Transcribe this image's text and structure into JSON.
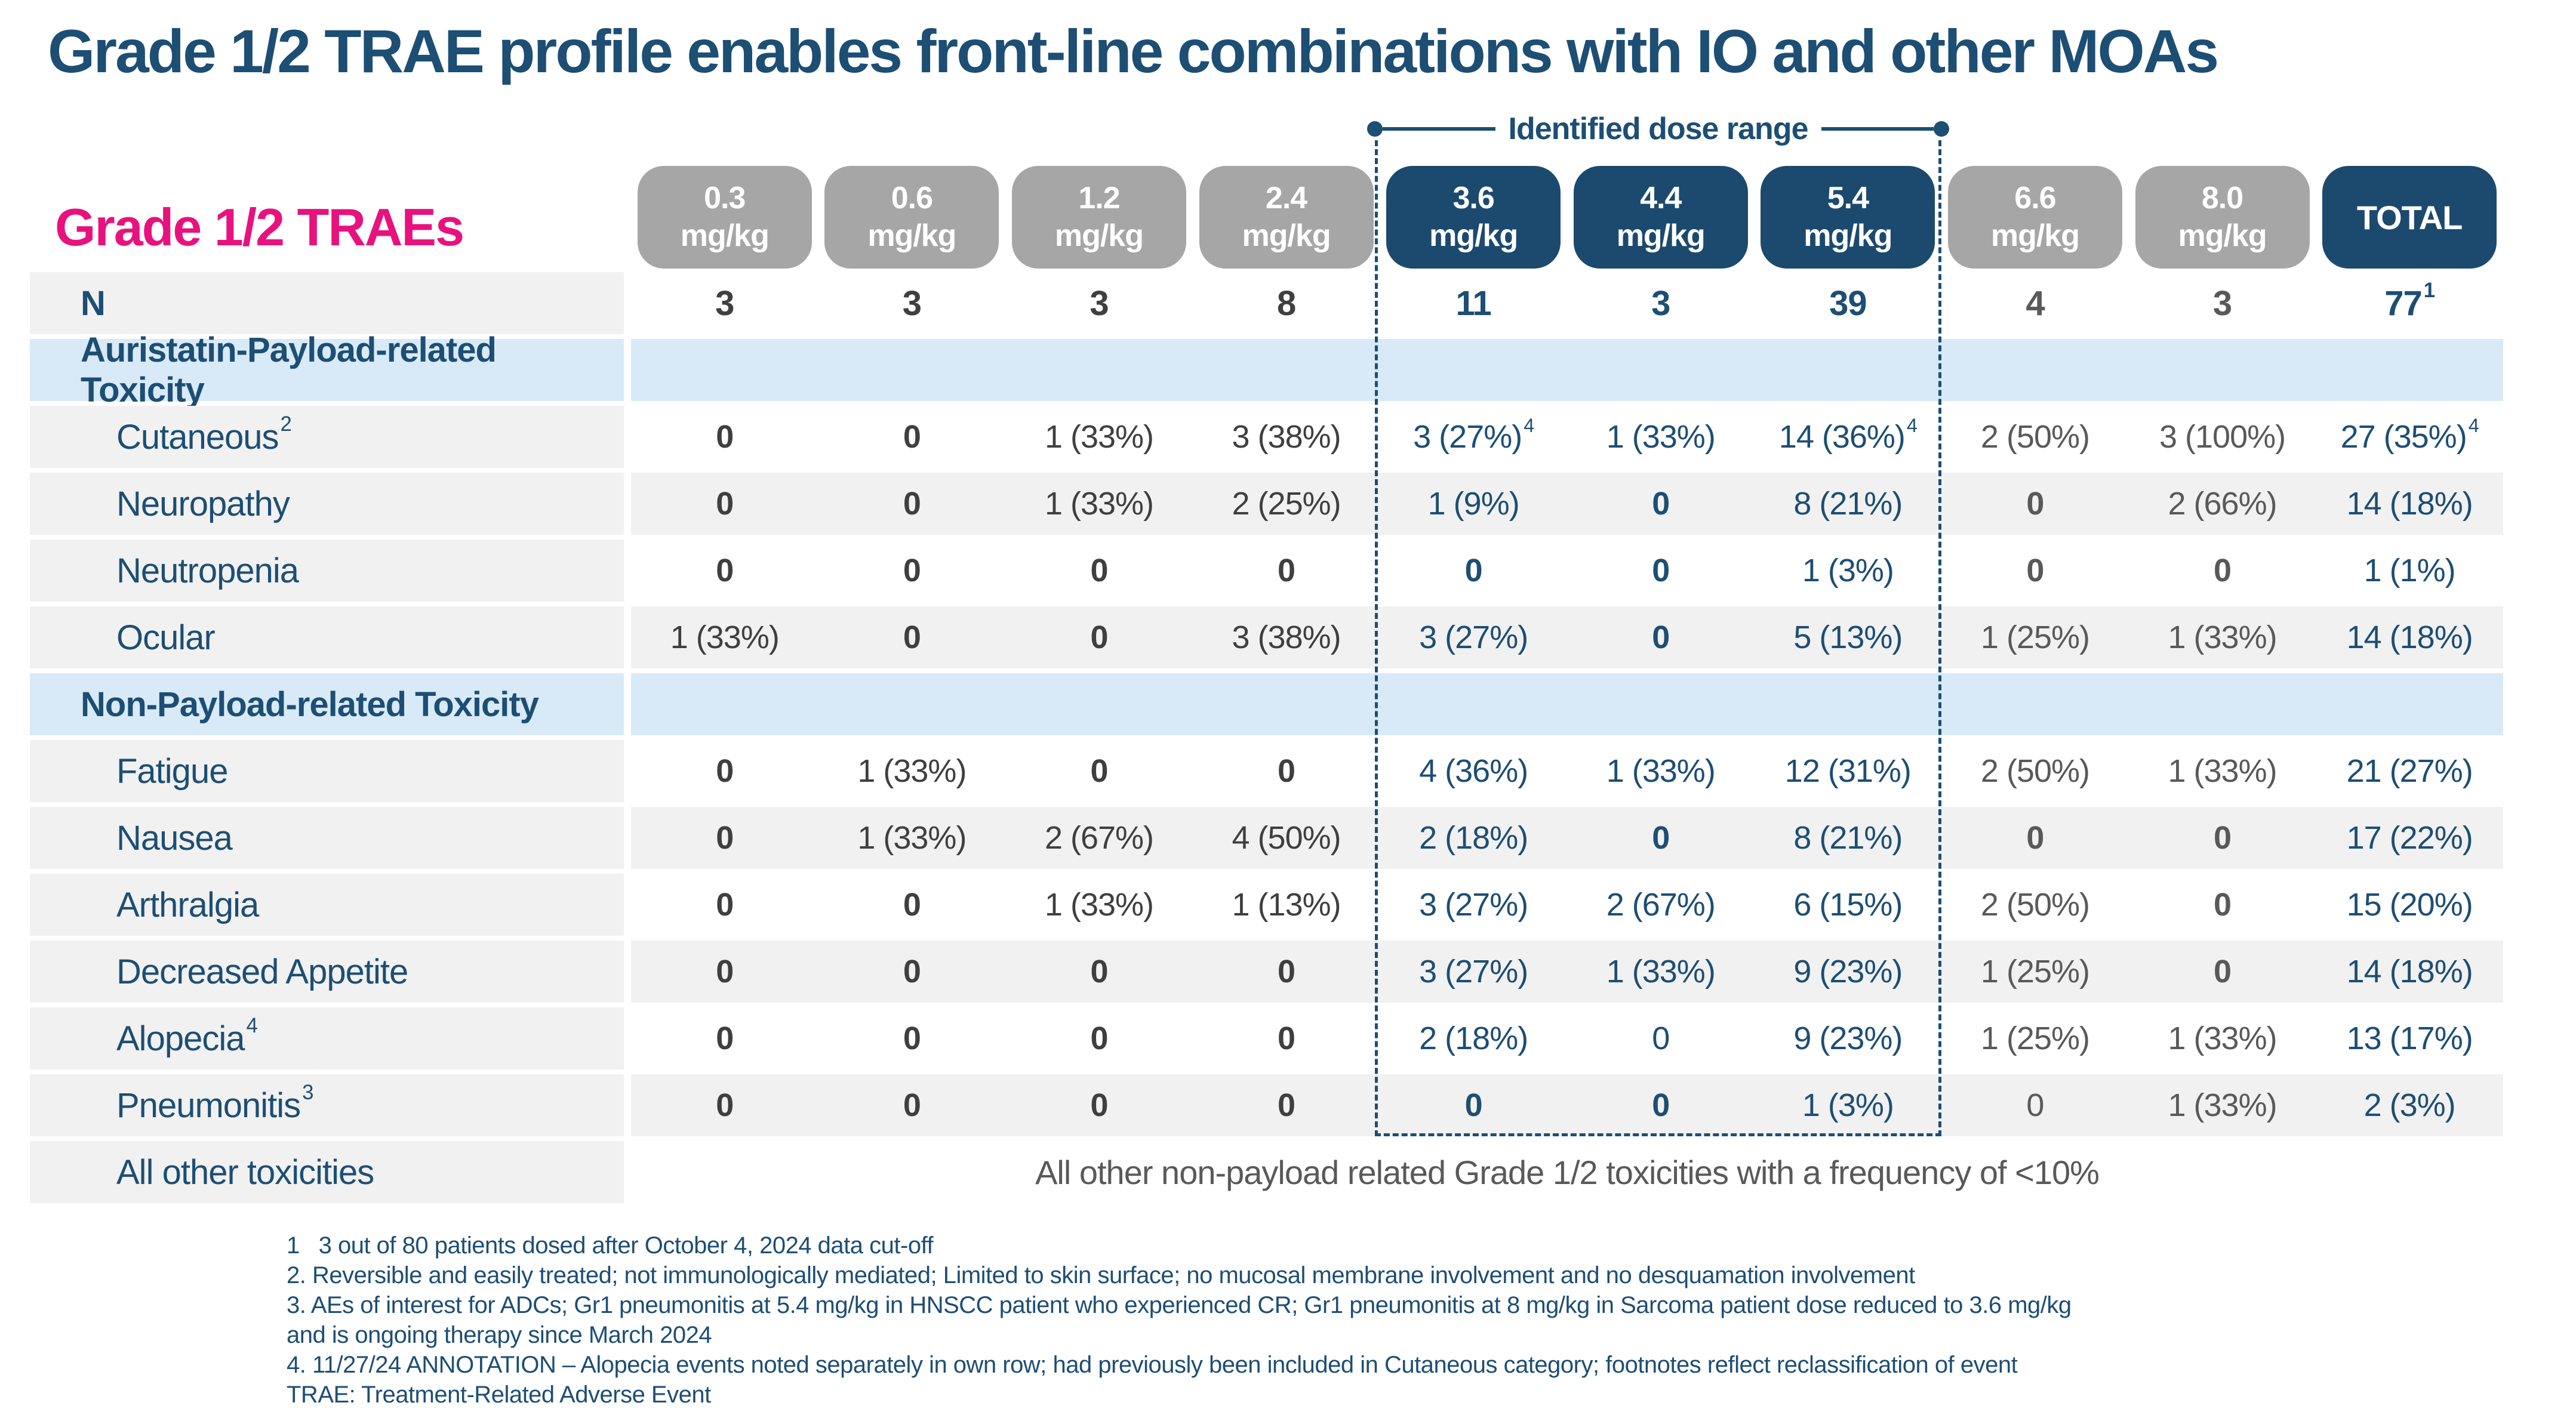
{
  "slide": {
    "title": "Grade 1/2 TRAE profile enables front-line combinations with IO and other MOAs"
  },
  "colors": {
    "navy": "#1d4e74",
    "navy_box": "#1c4a6e",
    "pink": "#e8127e",
    "gray_box": "#a6a6a6",
    "light_blue": "#d8eaf7",
    "cell_gray": "#f1f1f1",
    "text_dark": "#3f3f3f",
    "text_mid": "#595959"
  },
  "table": {
    "heading": "Grade 1/2 TRAEs",
    "annotation_label": "Identified dose range",
    "columns": [
      {
        "dose": "0.3",
        "unit": "mg/kg",
        "highlight": false
      },
      {
        "dose": "0.6",
        "unit": "mg/kg",
        "highlight": false
      },
      {
        "dose": "1.2",
        "unit": "mg/kg",
        "highlight": false
      },
      {
        "dose": "2.4",
        "unit": "mg/kg",
        "highlight": false
      },
      {
        "dose": "3.6",
        "unit": "mg/kg",
        "highlight": true
      },
      {
        "dose": "4.4",
        "unit": "mg/kg",
        "highlight": true
      },
      {
        "dose": "5.4",
        "unit": "mg/kg",
        "highlight": true
      },
      {
        "dose": "6.6",
        "unit": "mg/kg",
        "highlight": false
      },
      {
        "dose": "8.0",
        "unit": "mg/kg",
        "highlight": false
      },
      {
        "dose": "TOTAL",
        "unit": "",
        "highlight": true
      }
    ],
    "rows": [
      {
        "type": "n",
        "label": "N",
        "cells": [
          {
            "t": "3",
            "b": true
          },
          {
            "t": "3",
            "b": true
          },
          {
            "t": "3",
            "b": true
          },
          {
            "t": "8",
            "b": true
          },
          {
            "t": "11",
            "b": true
          },
          {
            "t": "3",
            "b": true
          },
          {
            "t": "39",
            "b": true
          },
          {
            "t": "4",
            "b": true
          },
          {
            "t": "3",
            "b": true
          },
          {
            "t": "77",
            "sup": "1",
            "b": true
          }
        ]
      },
      {
        "type": "section",
        "label": "Auristatin-Payload-related Toxicity"
      },
      {
        "type": "data",
        "label": "Cutaneous",
        "sup": "2",
        "shaded": false,
        "cells": [
          {
            "t": "0",
            "b": true
          },
          {
            "t": "0",
            "b": true
          },
          {
            "t": "1 (33%)"
          },
          {
            "t": "3 (38%)"
          },
          {
            "t": "3 (27%)",
            "sup": "4"
          },
          {
            "t": "1 (33%)"
          },
          {
            "t": "14 (36%)",
            "sup": "4"
          },
          {
            "t": "2 (50%)"
          },
          {
            "t": "3 (100%)"
          },
          {
            "t": "27 (35%)",
            "sup": "4"
          }
        ]
      },
      {
        "type": "data",
        "label": "Neuropathy",
        "shaded": true,
        "cells": [
          {
            "t": "0",
            "b": true
          },
          {
            "t": "0",
            "b": true
          },
          {
            "t": "1 (33%)"
          },
          {
            "t": "2 (25%)"
          },
          {
            "t": "1 (9%)"
          },
          {
            "t": "0",
            "b": true
          },
          {
            "t": "8 (21%)"
          },
          {
            "t": "0",
            "b": true
          },
          {
            "t": "2 (66%)"
          },
          {
            "t": "14 (18%)"
          }
        ]
      },
      {
        "type": "data",
        "label": "Neutropenia",
        "shaded": false,
        "cells": [
          {
            "t": "0",
            "b": true
          },
          {
            "t": "0",
            "b": true
          },
          {
            "t": "0",
            "b": true
          },
          {
            "t": "0",
            "b": true
          },
          {
            "t": "0",
            "b": true
          },
          {
            "t": "0",
            "b": true
          },
          {
            "t": "1 (3%)"
          },
          {
            "t": "0",
            "b": true
          },
          {
            "t": "0",
            "b": true
          },
          {
            "t": "1 (1%)"
          }
        ]
      },
      {
        "type": "data",
        "label": "Ocular",
        "shaded": true,
        "cells": [
          {
            "t": "1 (33%)"
          },
          {
            "t": "0",
            "b": true
          },
          {
            "t": "0",
            "b": true
          },
          {
            "t": "3 (38%)"
          },
          {
            "t": "3 (27%)"
          },
          {
            "t": "0",
            "b": true
          },
          {
            "t": "5 (13%)"
          },
          {
            "t": "1 (25%)"
          },
          {
            "t": "1 (33%)"
          },
          {
            "t": "14 (18%)"
          }
        ]
      },
      {
        "type": "section",
        "label": "Non-Payload-related Toxicity"
      },
      {
        "type": "data",
        "label": "Fatigue",
        "shaded": false,
        "cells": [
          {
            "t": "0",
            "b": true
          },
          {
            "t": "1 (33%)"
          },
          {
            "t": "0",
            "b": true
          },
          {
            "t": "0",
            "b": true
          },
          {
            "t": "4 (36%)"
          },
          {
            "t": "1 (33%)"
          },
          {
            "t": "12 (31%)"
          },
          {
            "t": "2 (50%)"
          },
          {
            "t": "1 (33%)"
          },
          {
            "t": "21 (27%)"
          }
        ]
      },
      {
        "type": "data",
        "label": "Nausea",
        "shaded": true,
        "cells": [
          {
            "t": "0",
            "b": true
          },
          {
            "t": "1 (33%)"
          },
          {
            "t": "2 (67%)"
          },
          {
            "t": "4 (50%)"
          },
          {
            "t": "2 (18%)"
          },
          {
            "t": "0",
            "b": true
          },
          {
            "t": "8 (21%)"
          },
          {
            "t": "0",
            "b": true
          },
          {
            "t": "0",
            "b": true
          },
          {
            "t": "17 (22%)"
          }
        ]
      },
      {
        "type": "data",
        "label": "Arthralgia",
        "shaded": false,
        "cells": [
          {
            "t": "0",
            "b": true
          },
          {
            "t": "0",
            "b": true
          },
          {
            "t": "1 (33%)"
          },
          {
            "t": "1 (13%)"
          },
          {
            "t": "3 (27%)"
          },
          {
            "t": "2 (67%)"
          },
          {
            "t": "6 (15%)"
          },
          {
            "t": "2 (50%)"
          },
          {
            "t": "0",
            "b": true
          },
          {
            "t": "15 (20%)"
          }
        ]
      },
      {
        "type": "data",
        "label": "Decreased Appetite",
        "shaded": true,
        "cells": [
          {
            "t": "0",
            "b": true
          },
          {
            "t": "0",
            "b": true
          },
          {
            "t": "0",
            "b": true
          },
          {
            "t": "0",
            "b": true
          },
          {
            "t": "3 (27%)"
          },
          {
            "t": "1 (33%)"
          },
          {
            "t": "9 (23%)"
          },
          {
            "t": "1 (25%)"
          },
          {
            "t": "0",
            "b": true
          },
          {
            "t": "14 (18%)"
          }
        ]
      },
      {
        "type": "data",
        "label": "Alopecia",
        "sup": "4",
        "shaded": false,
        "cells": [
          {
            "t": "0",
            "b": true
          },
          {
            "t": "0",
            "b": true
          },
          {
            "t": "0",
            "b": true
          },
          {
            "t": "0",
            "b": true
          },
          {
            "t": "2 (18%)"
          },
          {
            "t": "0",
            "b": false
          },
          {
            "t": "9 (23%)"
          },
          {
            "t": "1 (25%)"
          },
          {
            "t": "1 (33%)"
          },
          {
            "t": "13 (17%)"
          }
        ]
      },
      {
        "type": "data",
        "label": "Pneumonitis",
        "sup": "3",
        "shaded": true,
        "cells": [
          {
            "t": "0",
            "b": true
          },
          {
            "t": "0",
            "b": true
          },
          {
            "t": "0",
            "b": true
          },
          {
            "t": "0",
            "b": true
          },
          {
            "t": "0",
            "b": true
          },
          {
            "t": "0",
            "b": true
          },
          {
            "t": "1 (3%)"
          },
          {
            "t": "0",
            "b": false
          },
          {
            "t": "1 (33%)"
          },
          {
            "t": "2 (3%)"
          }
        ]
      },
      {
        "type": "merged",
        "label": "All other toxicities",
        "text": "All other non-payload related Grade 1/2 toxicities with a frequency of <10%"
      }
    ]
  },
  "footnotes": [
    "1   3 out of 80 patients dosed after October 4, 2024 data cut-off",
    "2. Reversible and easily treated; not immunologically mediated; Limited to skin surface; no mucosal membrane involvement and no desquamation involvement",
    "3. AEs of interest for ADCs; Gr1 pneumonitis at 5.4 mg/kg in HNSCC patient who experienced CR; Gr1 pneumonitis at 8 mg/kg in Sarcoma patient dose reduced to 3.6 mg/kg",
    "and is ongoing therapy since March 2024",
    "4. 11/27/24 ANNOTATION – Alopecia events noted separately in own row; had previously been included in Cutaneous category; footnotes reflect reclassification of event",
    "TRAE: Treatment-Related Adverse Event"
  ]
}
